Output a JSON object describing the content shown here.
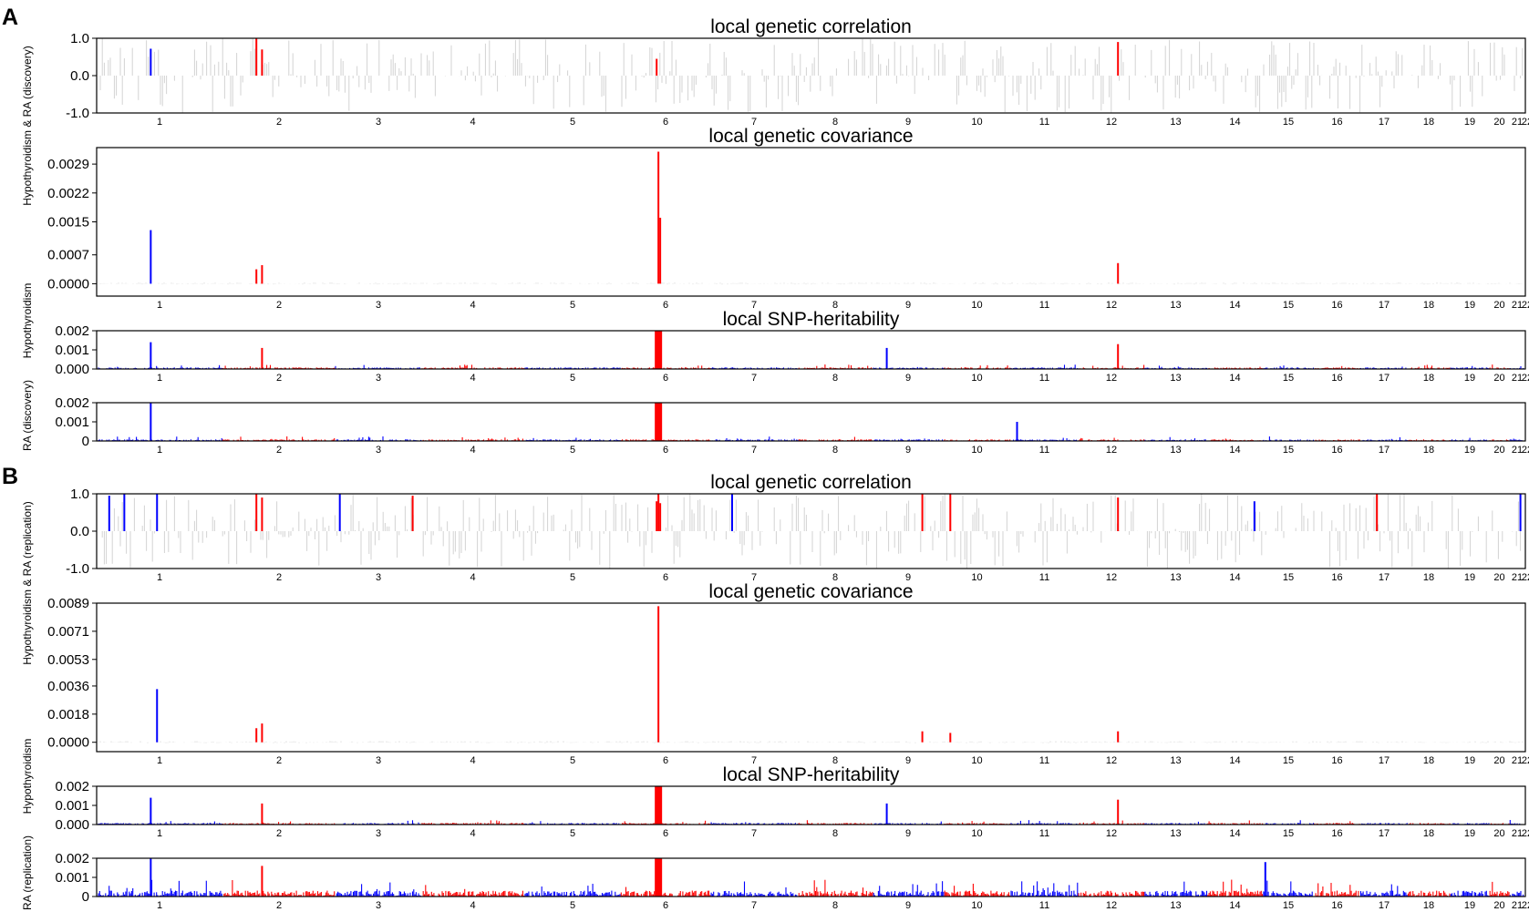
{
  "panel_labels": [
    "A",
    "B"
  ],
  "side_labels": {
    "a_shared": "Hypothyroidism & RA (discovery)",
    "a_hypo": "Hypothyroidism",
    "a_ra": "RA (discovery)",
    "b_shared": "Hypothyroidism & RA (replication)",
    "b_hypo": "Hypothyroidism",
    "b_ra": "RA (replication)"
  },
  "colors": {
    "positive_significant": "#ff0000",
    "negative_or_alt": "#0000ff",
    "nonsignificant": "#d3d3d3",
    "axis": "#000000"
  },
  "chart_data": [
    {
      "id": "a-correlation",
      "type": "bar",
      "title": "local genetic correlation",
      "ylim": [
        -1.0,
        1.0
      ],
      "yticks": [
        "1.0",
        "0.0",
        "-1.0"
      ],
      "x_tick_labels": [
        "1",
        "2",
        "3",
        "4",
        "5",
        "6",
        "7",
        "8",
        "9",
        "10",
        "11",
        "12",
        "13",
        "14",
        "15",
        "16",
        "17",
        "18",
        "19",
        "20",
        "21",
        "22"
      ],
      "highlighted_bars": [
        {
          "chromosome": 1,
          "value": 0.72,
          "color": "blue"
        },
        {
          "chromosome": 2,
          "value": 1.0,
          "color": "red"
        },
        {
          "chromosome": 2,
          "value": 0.7,
          "color": "red"
        },
        {
          "chromosome": 6,
          "value": 0.45,
          "color": "red"
        },
        {
          "chromosome": 12,
          "value": 0.9,
          "color": "red"
        }
      ]
    },
    {
      "id": "a-covariance",
      "type": "bar",
      "title": "local genetic covariance",
      "ylim": [
        -0.0003,
        0.0033
      ],
      "yticks": [
        "0.0029",
        "0.0022",
        "0.0015",
        "0.0007",
        "0.0000"
      ],
      "x_tick_labels": [
        "1",
        "2",
        "3",
        "4",
        "5",
        "6",
        "7",
        "8",
        "9",
        "10",
        "11",
        "12",
        "13",
        "14",
        "15",
        "16",
        "17",
        "18",
        "19",
        "20",
        "21",
        "22"
      ],
      "highlighted_bars": [
        {
          "chromosome": 1,
          "value": 0.0013,
          "color": "blue"
        },
        {
          "chromosome": 2,
          "value": 0.00035,
          "color": "red"
        },
        {
          "chromosome": 2,
          "value": 0.00045,
          "color": "red"
        },
        {
          "chromosome": 6,
          "value": 0.0032,
          "color": "red"
        },
        {
          "chromosome": 6,
          "value": 0.0016,
          "color": "red"
        },
        {
          "chromosome": 12,
          "value": 0.0005,
          "color": "red"
        }
      ]
    },
    {
      "id": "a-hyp-heritability",
      "type": "bar",
      "title": "local SNP-heritability",
      "ylim": [
        0,
        0.002
      ],
      "yticks": [
        "0.002",
        "0.001",
        "0.000"
      ],
      "x_tick_labels": [
        "1",
        "2",
        "3",
        "4",
        "5",
        "6",
        "7",
        "8",
        "9",
        "10",
        "11",
        "12",
        "13",
        "14",
        "15",
        "16",
        "17",
        "18",
        "19",
        "20",
        "21",
        "22"
      ],
      "peaks": [
        {
          "chromosome": 1,
          "value": 0.0014
        },
        {
          "chromosome": 2,
          "value": 0.0011
        },
        {
          "chromosome": 6,
          "value": 0.002
        },
        {
          "chromosome": 9,
          "value": 0.0011
        },
        {
          "chromosome": 12,
          "value": 0.0013
        }
      ]
    },
    {
      "id": "a-ra-heritability",
      "type": "bar",
      "ylim": [
        0,
        0.002
      ],
      "yticks": [
        "0.002",
        "0.001",
        "0"
      ],
      "x_tick_labels": [
        "1",
        "2",
        "3",
        "4",
        "5",
        "6",
        "7",
        "8",
        "9",
        "10",
        "11",
        "12",
        "13",
        "14",
        "15",
        "16",
        "17",
        "18",
        "19",
        "20",
        "21",
        "22"
      ],
      "peaks": [
        {
          "chromosome": 1,
          "value": 0.002
        },
        {
          "chromosome": 6,
          "value": 0.002
        },
        {
          "chromosome": 11,
          "value": 0.001
        }
      ]
    },
    {
      "id": "b-correlation",
      "type": "bar",
      "title": "local genetic correlation",
      "ylim": [
        -1.0,
        1.0
      ],
      "yticks": [
        "1.0",
        "0.0",
        "-1.0"
      ],
      "x_tick_labels": [
        "1",
        "2",
        "3",
        "4",
        "5",
        "6",
        "7",
        "8",
        "9",
        "10",
        "11",
        "12",
        "13",
        "14",
        "15",
        "16",
        "17",
        "18",
        "19",
        "20",
        "21",
        "22"
      ],
      "highlighted_bars": [
        {
          "chromosome": 1,
          "value": 0.95,
          "color": "blue"
        },
        {
          "chromosome": 1,
          "value": 1.0,
          "color": "blue"
        },
        {
          "chromosome": 1,
          "value": 1.0,
          "color": "blue"
        },
        {
          "chromosome": 2,
          "value": 1.0,
          "color": "red"
        },
        {
          "chromosome": 2,
          "value": 0.9,
          "color": "red"
        },
        {
          "chromosome": 3,
          "value": 1.0,
          "color": "blue"
        },
        {
          "chromosome": 3,
          "value": 0.95,
          "color": "red"
        },
        {
          "chromosome": 6,
          "value": 0.8,
          "color": "red"
        },
        {
          "chromosome": 6,
          "value": 1.0,
          "color": "red"
        },
        {
          "chromosome": 6,
          "value": 0.75,
          "color": "red"
        },
        {
          "chromosome": 7,
          "value": 1.0,
          "color": "blue"
        },
        {
          "chromosome": 9,
          "value": 1.0,
          "color": "red"
        },
        {
          "chromosome": 10,
          "value": 1.0,
          "color": "red"
        },
        {
          "chromosome": 12,
          "value": 0.9,
          "color": "red"
        },
        {
          "chromosome": 14,
          "value": 0.8,
          "color": "blue"
        },
        {
          "chromosome": 17,
          "value": 1.0,
          "color": "red"
        },
        {
          "chromosome": 21,
          "value": 1.0,
          "color": "blue"
        }
      ]
    },
    {
      "id": "b-covariance",
      "type": "bar",
      "title": "local genetic covariance",
      "ylim": [
        -0.0006,
        0.0089
      ],
      "yticks": [
        "0.0089",
        "0.0071",
        "0.0053",
        "0.0036",
        "0.0018",
        "0.0000"
      ],
      "x_tick_labels": [
        "1",
        "2",
        "3",
        "4",
        "5",
        "6",
        "7",
        "8",
        "9",
        "10",
        "11",
        "12",
        "13",
        "14",
        "15",
        "16",
        "17",
        "18",
        "19",
        "20",
        "21",
        "22"
      ],
      "highlighted_bars": [
        {
          "chromosome": 1,
          "value": 0.0034,
          "color": "blue"
        },
        {
          "chromosome": 2,
          "value": 0.0009,
          "color": "red"
        },
        {
          "chromosome": 2,
          "value": 0.0012,
          "color": "red"
        },
        {
          "chromosome": 6,
          "value": 0.0087,
          "color": "red"
        },
        {
          "chromosome": 9,
          "value": 0.0007,
          "color": "red"
        },
        {
          "chromosome": 10,
          "value": 0.0006,
          "color": "red"
        },
        {
          "chromosome": 12,
          "value": 0.0007,
          "color": "red"
        }
      ]
    },
    {
      "id": "b-hyp-heritability",
      "type": "bar",
      "title": "local SNP-heritability",
      "ylim": [
        0,
        0.002
      ],
      "yticks": [
        "0.002",
        "0.001",
        "0.000"
      ],
      "x_tick_labels": [
        "1",
        "2",
        "3",
        "4",
        "5",
        "6",
        "7",
        "8",
        "9",
        "10",
        "11",
        "12",
        "13",
        "14",
        "15",
        "16",
        "17",
        "18",
        "19",
        "20",
        "21",
        "22"
      ],
      "peaks": [
        {
          "chromosome": 1,
          "value": 0.0014
        },
        {
          "chromosome": 2,
          "value": 0.0011
        },
        {
          "chromosome": 6,
          "value": 0.002
        },
        {
          "chromosome": 9,
          "value": 0.0011
        },
        {
          "chromosome": 12,
          "value": 0.0013
        }
      ]
    },
    {
      "id": "b-ra-heritability",
      "type": "bar",
      "ylim": [
        0,
        0.002
      ],
      "yticks": [
        "0.002",
        "0.001",
        "0"
      ],
      "x_tick_labels": [
        "1",
        "2",
        "3",
        "4",
        "5",
        "6",
        "7",
        "8",
        "9",
        "10",
        "11",
        "12",
        "13",
        "14",
        "15",
        "16",
        "17",
        "18",
        "19",
        "20",
        "21",
        "22"
      ],
      "peaks": [
        {
          "chromosome": 1,
          "value": 0.002
        },
        {
          "chromosome": 2,
          "value": 0.0016
        },
        {
          "chromosome": 6,
          "value": 0.002
        },
        {
          "chromosome": 15,
          "value": 0.0018
        }
      ]
    }
  ]
}
